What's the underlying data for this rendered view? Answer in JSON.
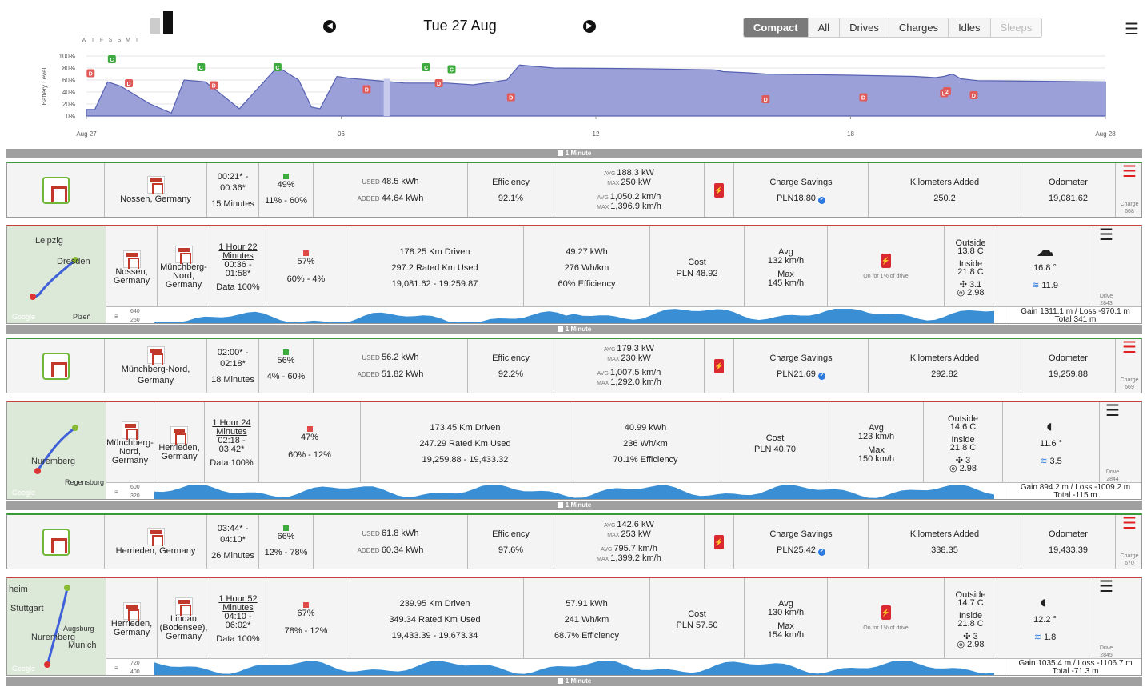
{
  "header": {
    "week_days": [
      "W",
      "T",
      "F",
      "S",
      "S",
      "M",
      "T"
    ],
    "week_levels": [
      0,
      0,
      0,
      0,
      0,
      0.65,
      0.95
    ],
    "prev_icon": "arrow-left-icon",
    "next_icon": "arrow-right-icon",
    "date": "Tue 27 Aug",
    "filters": [
      "Compact",
      "All",
      "Drives",
      "Charges",
      "Idles",
      "Sleeps"
    ],
    "active_filter": "Compact",
    "menu_icon": "hamburger-icon"
  },
  "battery_chart": {
    "ylabel": "Battery Level",
    "yticks": [
      "100%",
      "80%",
      "60%",
      "40%",
      "20%",
      "0%"
    ],
    "xticks": [
      "Aug 27",
      "06",
      "12",
      "18",
      "Aug 28"
    ],
    "markers": [
      "D",
      "C",
      "D",
      "C",
      "D",
      "C",
      "D",
      "C",
      "D",
      "C",
      "D",
      "D",
      "D",
      "D",
      "D",
      "2"
    ],
    "color": "#9ba0d9"
  },
  "chart_data": {
    "type": "area",
    "title": "",
    "ylabel": "Battery Level",
    "ylim": [
      0,
      100
    ],
    "x_hours": [
      0,
      0.2,
      0.5,
      0.8,
      1.5,
      2.0,
      2.3,
      2.8,
      3.2,
      3.6,
      4.5,
      5.0,
      5.3,
      5.5,
      5.9,
      6.2,
      7.0,
      7.5,
      8.5,
      9.1,
      9.3,
      9.6,
      9.9,
      10.2,
      11,
      13,
      14.8,
      15.0,
      15.6,
      16,
      18,
      19.5,
      20.0,
      20.2,
      20.4,
      20.6,
      21,
      24
    ],
    "values": [
      11,
      11,
      57,
      50,
      20,
      5,
      60,
      57,
      35,
      12,
      82,
      60,
      15,
      12,
      66,
      63,
      58,
      55,
      55,
      52,
      54,
      57,
      60,
      85,
      80,
      79,
      77,
      74,
      72,
      70,
      68,
      66,
      64,
      66,
      70,
      62,
      59,
      57
    ]
  },
  "divider_label": "1 Minute",
  "rows": [
    {
      "kind": "charge",
      "location": "Nossen, Germany",
      "time": "00:21* -\n00:36*",
      "duration": "15 Minutes",
      "soc_pct": "49%",
      "soc_range": "11% - 60%",
      "used_label": "USED",
      "used": "48.5 kWh",
      "added_label": "ADDED",
      "added": "44.64 kWh",
      "efficiency_label": "Efficiency",
      "efficiency": "92.1%",
      "avg_label": "AVG",
      "avg_kw": "188.3 kW",
      "max_label": "MAX",
      "max_kw": "250 kW",
      "avg_kmh": "1,050.2 km/h",
      "max_kmh": "1,396.9 km/h",
      "savings_label": "Charge Savings",
      "savings": "PLN18.80",
      "km_label": "Kilometers Added",
      "km": "250.2",
      "odo_label": "Odometer",
      "odo": "19,081.62",
      "side_label": "Charge",
      "side_num": "668"
    },
    {
      "kind": "drive",
      "map_labels": [
        "Leipzig",
        "Dresden",
        "Plzeň",
        "Google"
      ],
      "from": "Nossen, Germany",
      "to": "Münchberg-Nord, Germany",
      "duration": "1 Hour 22 Minutes",
      "time": "00:36 -\n01:58*",
      "data": "Data 100%",
      "soc_pct": "57%",
      "soc_range": "60% - 4%",
      "km_driven": "178.25 Km Driven",
      "rated_used": "297.2 Rated Km Used",
      "odo_range": "19,081.62 - 19,259.87",
      "kwh": "49.27 kWh",
      "whkm": "276 Wh/km",
      "eff": "60% Efficiency",
      "cost_label": "Cost",
      "cost": "PLN 48.92",
      "avg_label": "Avg",
      "avg": "132 km/h",
      "max_label": "Max",
      "max": "145 km/h",
      "heater": "On for 1% of drive",
      "outside_label": "Outside",
      "outside": "13.8 C",
      "inside_label": "Inside",
      "inside": "21.8 C",
      "climate_a": "3.1",
      "climate_b": "2.98",
      "weather_icon": "cloud-icon",
      "temp": "16.8 °",
      "wind": "11.9",
      "side_label": "Drive",
      "side_num": "2843",
      "elev_hi": "640",
      "elev_lo": "250",
      "gain": "Gain 1311.1 m / Loss -970.1 m",
      "total": "Total 341 m"
    },
    {
      "kind": "charge",
      "location": "Münchberg-Nord, Germany",
      "time": "02:00* -\n02:18*",
      "duration": "18 Minutes",
      "soc_pct": "56%",
      "soc_range": "4% - 60%",
      "used_label": "USED",
      "used": "56.2 kWh",
      "added_label": "ADDED",
      "added": "51.82 kWh",
      "efficiency_label": "Efficiency",
      "efficiency": "92.2%",
      "avg_label": "AVG",
      "avg_kw": "179.3 kW",
      "max_label": "MAX",
      "max_kw": "230 kW",
      "avg_kmh": "1,007.5 km/h",
      "max_kmh": "1,292.0 km/h",
      "savings_label": "Charge Savings",
      "savings": "PLN21.69",
      "km_label": "Kilometers Added",
      "km": "292.82",
      "odo_label": "Odometer",
      "odo": "19,259.88",
      "side_label": "Charge",
      "side_num": "669"
    },
    {
      "kind": "drive",
      "map_labels": [
        "Nuremberg",
        "Regensburg",
        "Google"
      ],
      "from": "Münchberg-Nord, Germany",
      "to": "Herrieden, Germany",
      "duration": "1 Hour 24 Minutes",
      "time": "02:18 -\n03:42*",
      "data": "Data 100%",
      "soc_pct": "47%",
      "soc_range": "60% - 12%",
      "km_driven": "173.45 Km Driven",
      "rated_used": "247.29 Rated Km Used",
      "odo_range": "19,259.88 - 19,433.32",
      "kwh": "40.99 kWh",
      "whkm": "236 Wh/km",
      "eff": "70.1% Efficiency",
      "cost_label": "Cost",
      "cost": "PLN 40.70",
      "avg_label": "Avg",
      "avg": "123 km/h",
      "max_label": "Max",
      "max": "150 km/h",
      "heater": "",
      "outside_label": "Outside",
      "outside": "14.6 C",
      "inside_label": "Inside",
      "inside": "21.8 C",
      "climate_a": "3",
      "climate_b": "2.98",
      "weather_icon": "moon-cloud-icon",
      "temp": "11.6 °",
      "wind": "3.5",
      "side_label": "Drive",
      "side_num": "2844",
      "elev_hi": "600",
      "elev_lo": "320",
      "gain": "Gain 894.2 m / Loss -1009.2 m",
      "total": "Total -115 m"
    },
    {
      "kind": "charge",
      "location": "Herrieden, Germany",
      "time": "03:44* -\n04:10*",
      "duration": "26 Minutes",
      "soc_pct": "66%",
      "soc_range": "12% - 78%",
      "used_label": "USED",
      "used": "61.8 kWh",
      "added_label": "ADDED",
      "added": "60.34 kWh",
      "efficiency_label": "Efficiency",
      "efficiency": "97.6%",
      "avg_label": "AVG",
      "avg_kw": "142.6 kW",
      "max_label": "MAX",
      "max_kw": "253 kW",
      "avg_kmh": "795.7 km/h",
      "max_kmh": "1,399.2 km/h",
      "savings_label": "Charge Savings",
      "savings": "PLN25.42",
      "km_label": "Kilometers Added",
      "km": "338.35",
      "odo_label": "Odometer",
      "odo": "19,433.39",
      "side_label": "Charge",
      "side_num": "670"
    },
    {
      "kind": "drive",
      "map_labels": [
        "Nuremberg",
        "heim",
        "Stuttgart",
        "Augsburg",
        "Munich",
        "Google"
      ],
      "from": "Herrieden, Germany",
      "to": "Lindau (Bodensee), Germany",
      "duration": "1 Hour 52 Minutes",
      "time": "04:10 -\n06:02*",
      "data": "Data 100%",
      "soc_pct": "67%",
      "soc_range": "78% - 12%",
      "km_driven": "239.95 Km Driven",
      "rated_used": "349.34 Rated Km Used",
      "odo_range": "19,433.39 - 19,673.34",
      "kwh": "57.91 kWh",
      "whkm": "241 Wh/km",
      "eff": "68.7% Efficiency",
      "cost_label": "Cost",
      "cost": "PLN 57.50",
      "avg_label": "Avg",
      "avg": "130 km/h",
      "max_label": "Max",
      "max": "154 km/h",
      "heater": "On for 1% of drive",
      "outside_label": "Outside",
      "outside": "14.7 C",
      "inside_label": "Inside",
      "inside": "21.8 C",
      "climate_a": "3",
      "climate_b": "2.98",
      "weather_icon": "moon-cloud-icon",
      "temp": "12.2 °",
      "wind": "1.8",
      "side_label": "Drive",
      "side_num": "2845",
      "elev_hi": "720",
      "elev_lo": "400",
      "gain": "Gain 1035.4 m / Loss -1106.7 m",
      "total": "Total -71.3 m"
    }
  ]
}
